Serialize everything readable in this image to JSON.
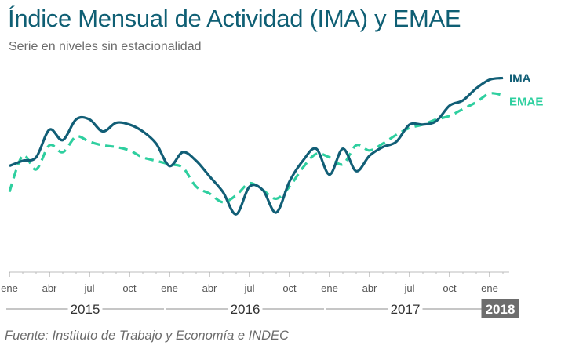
{
  "chart_data": {
    "type": "line",
    "title": "Índice Mensual de Actividad (IMA) y EMAE",
    "subtitle": "Serie en niveles sin estacionalidad",
    "source": "Fuente: Instituto de Trabajo y Economía e INDEC",
    "x": [
      "2015-01",
      "2015-02",
      "2015-03",
      "2015-04",
      "2015-05",
      "2015-06",
      "2015-07",
      "2015-08",
      "2015-09",
      "2015-10",
      "2015-11",
      "2015-12",
      "2016-01",
      "2016-02",
      "2016-03",
      "2016-04",
      "2016-05",
      "2016-06",
      "2016-07",
      "2016-08",
      "2016-09",
      "2016-10",
      "2016-11",
      "2016-12",
      "2017-01",
      "2017-02",
      "2017-03",
      "2017-04",
      "2017-05",
      "2017-06",
      "2017-07",
      "2017-08",
      "2017-09",
      "2017-10",
      "2017-11",
      "2017-12",
      "2018-01",
      "2018-02"
    ],
    "x_tick_labels": [
      "ene",
      "abr",
      "jul",
      "oct",
      "ene",
      "abr",
      "jul",
      "oct",
      "ene",
      "abr",
      "jul",
      "oct",
      "ene"
    ],
    "x_tick_months": [
      "2015-01",
      "2015-04",
      "2015-07",
      "2015-10",
      "2016-01",
      "2016-04",
      "2016-07",
      "2016-10",
      "2017-01",
      "2017-04",
      "2017-07",
      "2017-10",
      "2018-01"
    ],
    "years": [
      {
        "label": "2015",
        "start": "2015-01",
        "end": "2015-12",
        "highlight": false
      },
      {
        "label": "2016",
        "start": "2016-01",
        "end": "2016-12",
        "highlight": false
      },
      {
        "label": "2017",
        "start": "2017-01",
        "end": "2017-12",
        "highlight": false
      },
      {
        "label": "2018",
        "start": "2018-01",
        "end": "2018-02",
        "highlight": true
      }
    ],
    "ylim": [
      0,
      100
    ],
    "series": [
      {
        "name": "IMA",
        "color": "#115e76",
        "style": "solid",
        "values": [
          47,
          50,
          52,
          68,
          62,
          74,
          74,
          67,
          72,
          71,
          67,
          60,
          47,
          55,
          50,
          41,
          32,
          19,
          35,
          33,
          20,
          38,
          50,
          57,
          42,
          57,
          44,
          53,
          58,
          61,
          71,
          71,
          73,
          82,
          85,
          92,
          97,
          98
        ]
      },
      {
        "name": "EMAE",
        "color": "#2ecf9f",
        "style": "dashed",
        "values": [
          32,
          53,
          45,
          59,
          55,
          64,
          61,
          59,
          58,
          56,
          52,
          50,
          48,
          46,
          35,
          31,
          26,
          30,
          37,
          33,
          28,
          35,
          46,
          54,
          52,
          48,
          59,
          56,
          60,
          65,
          69,
          71,
          74,
          76,
          80,
          84,
          89,
          88
        ]
      }
    ],
    "grid": false,
    "legend": "right-end labels"
  }
}
